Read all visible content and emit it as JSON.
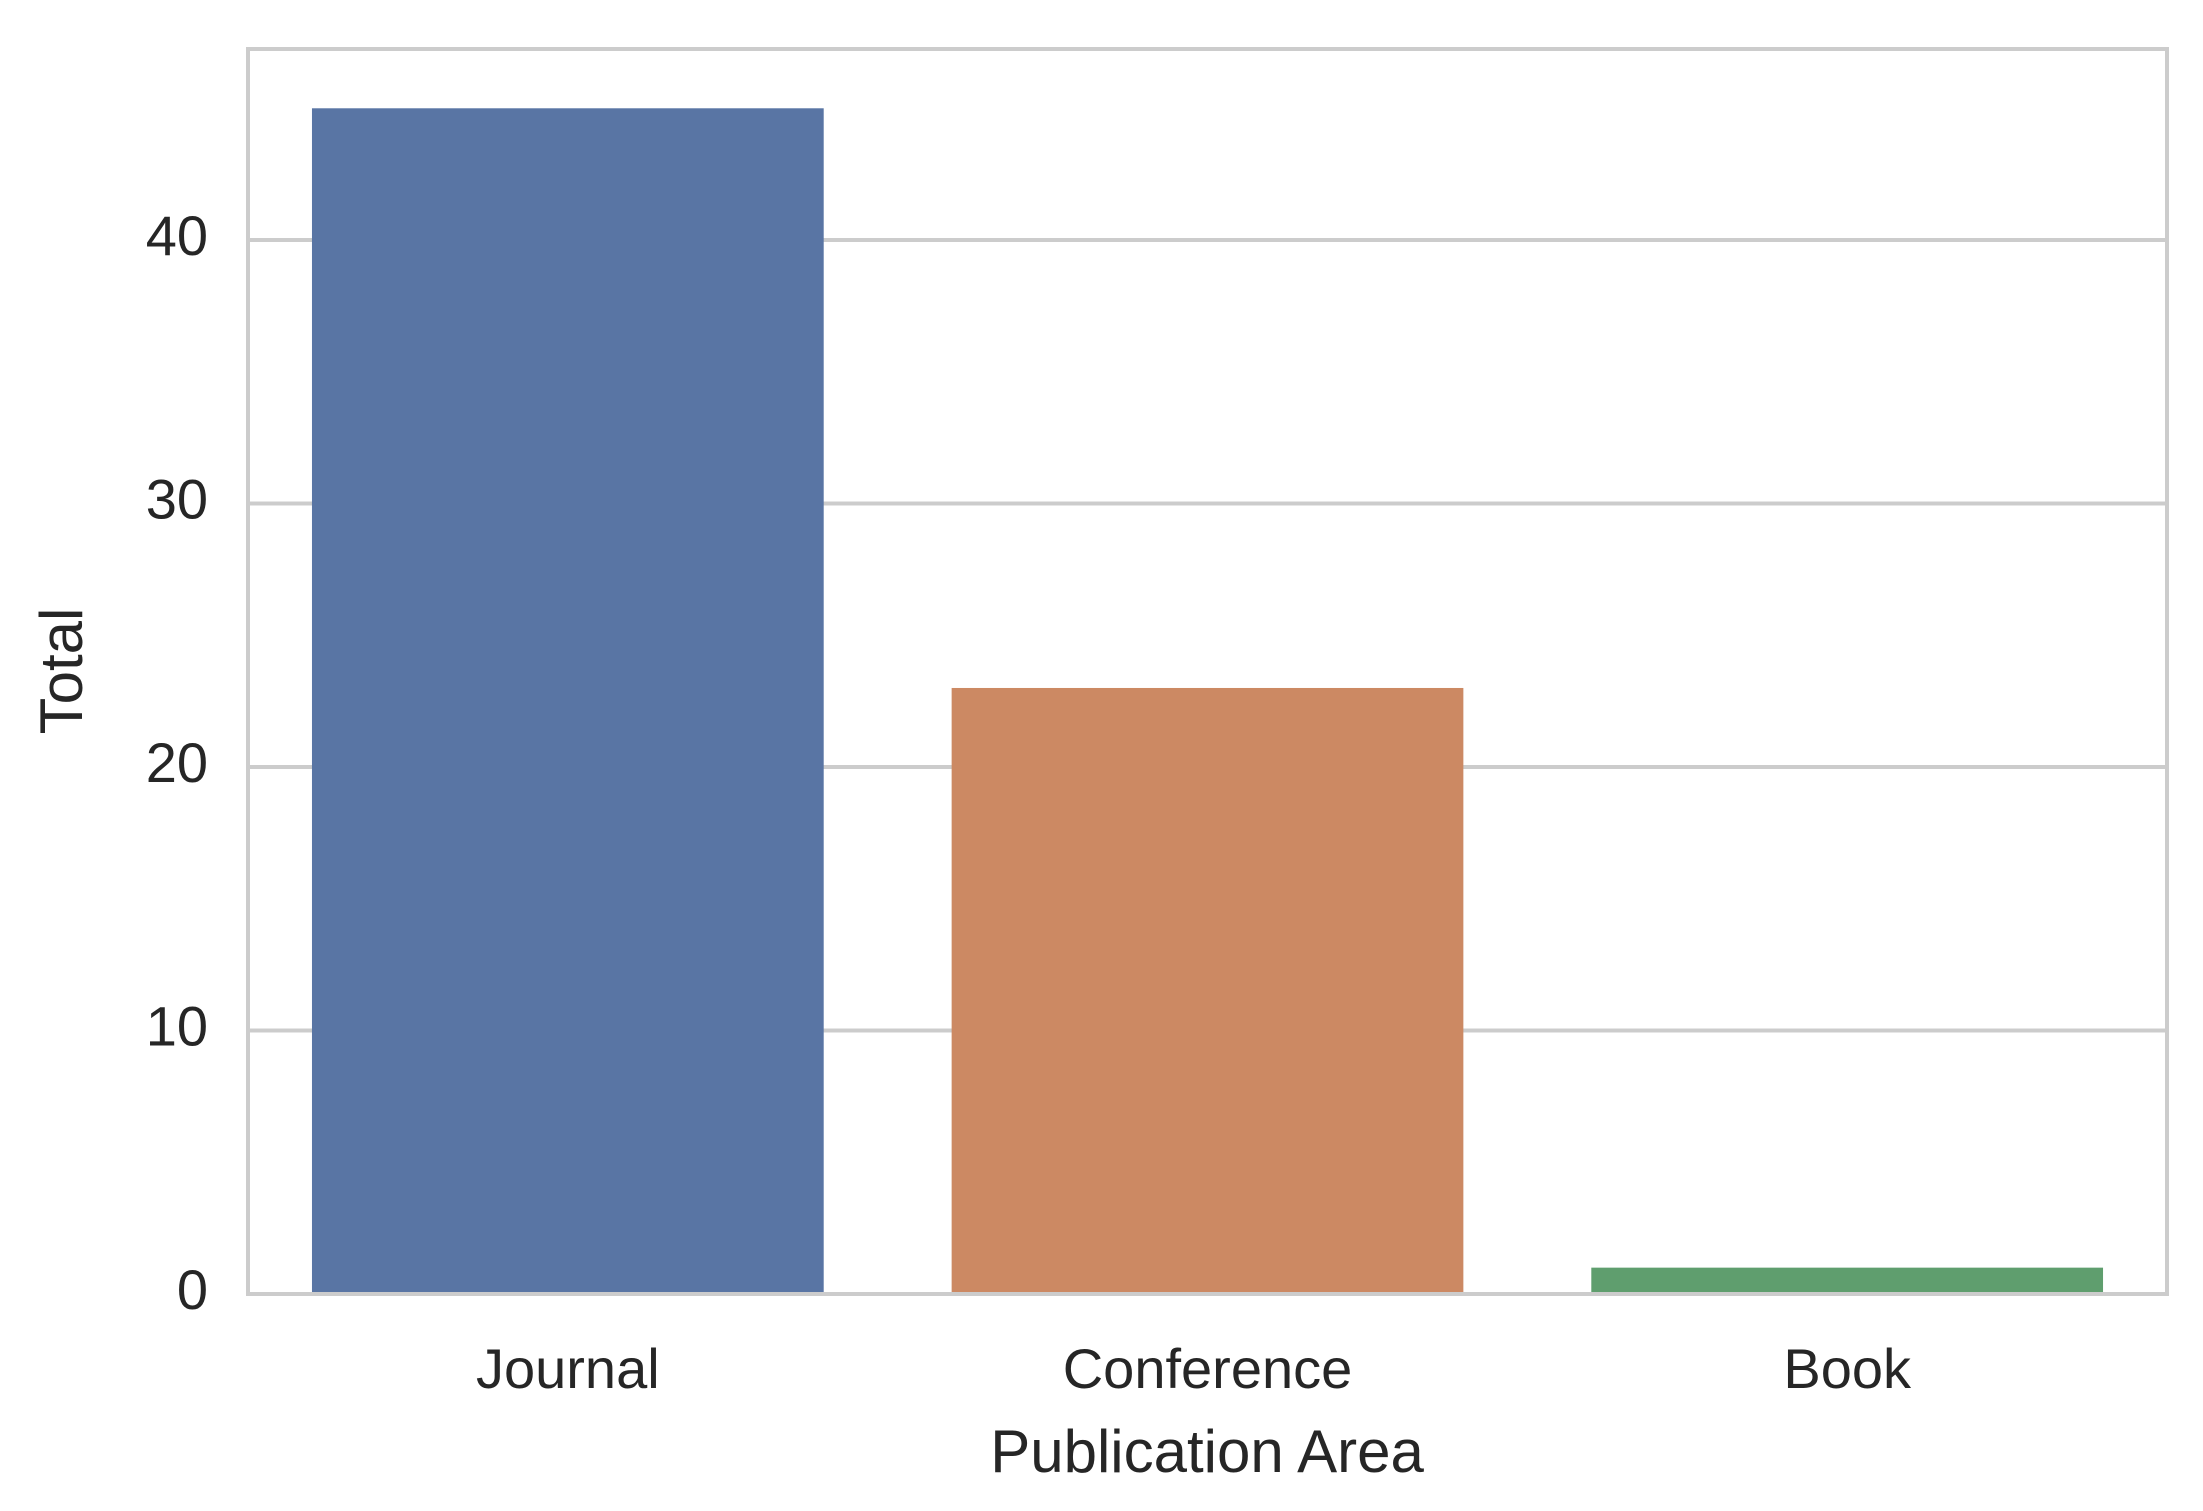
{
  "chart_data": {
    "type": "bar",
    "x_label": "Publication Area",
    "y_label": "Total",
    "categories": [
      "Journal",
      "Conference",
      "Book"
    ],
    "values": [
      45,
      23,
      1
    ],
    "colors": [
      "#5975a4",
      "#cc8963",
      "#5f9e6e"
    ],
    "ylim": [
      0,
      47.25
    ],
    "yticks": [
      0,
      10,
      20,
      30,
      40
    ],
    "grid": true
  }
}
